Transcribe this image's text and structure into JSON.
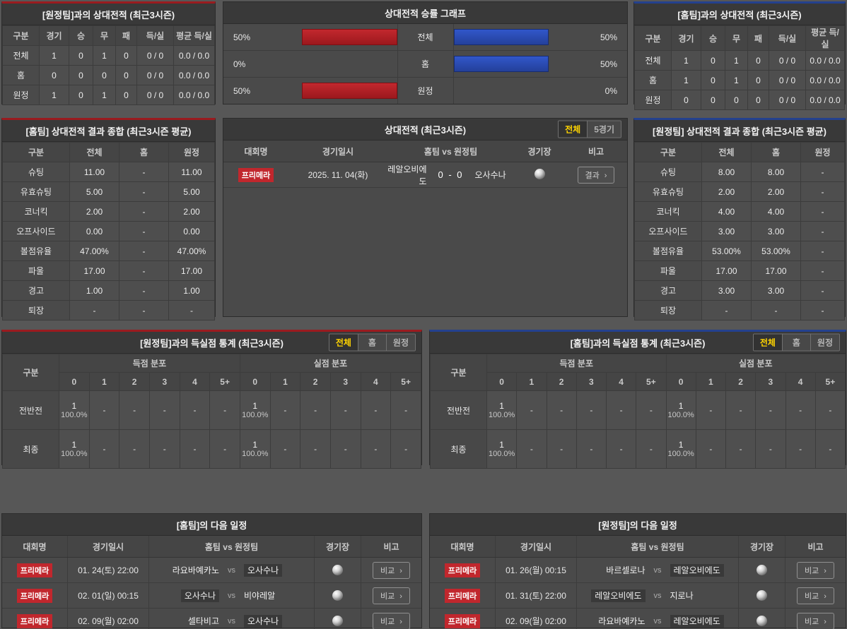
{
  "colors": {
    "accent_red": "#9a1b1f",
    "accent_blue": "#24418e",
    "badge_red": "#c1272d",
    "bar_red": "#b52327",
    "bar_blue": "#2f54c4",
    "tab_selected_text": "#ffd400"
  },
  "panels": {
    "h2h_vs_away": {
      "title": "[원정팀]과의 상대전적 (최근3시즌)",
      "columns": [
        "구분",
        "경기",
        "승",
        "무",
        "패",
        "득/실",
        "평균 득/실"
      ],
      "rows": [
        [
          "전체",
          "1",
          "0",
          "1",
          "0",
          "0 / 0",
          "0.0 / 0.0"
        ],
        [
          "홈",
          "0",
          "0",
          "0",
          "0",
          "0 / 0",
          "0.0 / 0.0"
        ],
        [
          "원정",
          "1",
          "0",
          "1",
          "0",
          "0 / 0",
          "0.0 / 0.0"
        ]
      ]
    },
    "winrate_graph": {
      "title": "상대전적 승률 그래프",
      "rows": [
        {
          "label": "전체",
          "left_pct": "50%",
          "left_value": 50,
          "right_pct": "50%",
          "right_value": 50
        },
        {
          "label": "홈",
          "left_pct": "0%",
          "left_value": 0,
          "right_pct": "50%",
          "right_value": 50
        },
        {
          "label": "원정",
          "left_pct": "50%",
          "left_value": 50,
          "right_pct": "0%",
          "right_value": 0
        }
      ]
    },
    "h2h_vs_home": {
      "title": "[홈팀]과의 상대전적 (최근3시즌)",
      "columns": [
        "구분",
        "경기",
        "승",
        "무",
        "패",
        "득/실",
        "평균 득/실"
      ],
      "rows": [
        [
          "전체",
          "1",
          "0",
          "1",
          "0",
          "0 / 0",
          "0.0 / 0.0"
        ],
        [
          "홈",
          "1",
          "0",
          "1",
          "0",
          "0 / 0",
          "0.0 / 0.0"
        ],
        [
          "원정",
          "0",
          "0",
          "0",
          "0",
          "0 / 0",
          "0.0 / 0.0"
        ]
      ]
    },
    "home_summary": {
      "title": "[홈팀] 상대전적 결과 종합 (최근3시즌 평균)",
      "columns": [
        "구분",
        "전체",
        "홈",
        "원정"
      ],
      "rows": [
        [
          "슈팅",
          "11.00",
          "-",
          "11.00"
        ],
        [
          "유효슈팅",
          "5.00",
          "-",
          "5.00"
        ],
        [
          "코너킥",
          "2.00",
          "-",
          "2.00"
        ],
        [
          "오프사이드",
          "0.00",
          "-",
          "0.00"
        ],
        [
          "볼점유율",
          "47.00%",
          "-",
          "47.00%"
        ],
        [
          "파울",
          "17.00",
          "-",
          "17.00"
        ],
        [
          "경고",
          "1.00",
          "-",
          "1.00"
        ],
        [
          "퇴장",
          "-",
          "-",
          "-"
        ]
      ]
    },
    "h2h_matches": {
      "title": "상대전적 (최근3시즌)",
      "tabs": [
        {
          "name": "all",
          "label": "전체",
          "selected": true
        },
        {
          "name": "5games",
          "label": "5경기",
          "selected": false
        }
      ],
      "columns": [
        "대회명",
        "경기일시",
        "홈팀 vs 원정팀",
        "경기장",
        "비고"
      ],
      "rows": [
        {
          "league": "프리메라",
          "datetime": "2025. 11. 04(화)",
          "home": "레알오비에도",
          "score": "0 - 0",
          "away": "오사수나",
          "button": "결과"
        }
      ]
    },
    "away_summary": {
      "title": "[원정팀] 상대전적 결과 종합 (최근3시즌 평균)",
      "columns": [
        "구분",
        "전체",
        "홈",
        "원정"
      ],
      "rows": [
        [
          "슈팅",
          "8.00",
          "8.00",
          "-"
        ],
        [
          "유효슈팅",
          "2.00",
          "2.00",
          "-"
        ],
        [
          "코너킥",
          "4.00",
          "4.00",
          "-"
        ],
        [
          "오프사이드",
          "3.00",
          "3.00",
          "-"
        ],
        [
          "볼점유율",
          "53.00%",
          "53.00%",
          "-"
        ],
        [
          "파울",
          "17.00",
          "17.00",
          "-"
        ],
        [
          "경고",
          "3.00",
          "3.00",
          "-"
        ],
        [
          "퇴장",
          "-",
          "-",
          "-"
        ]
      ]
    },
    "goals_vs_away": {
      "title": "[원정팀]과의 득실점 통계 (최근3시즌)",
      "tabs": [
        {
          "name": "all",
          "label": "전체",
          "selected": true
        },
        {
          "name": "home",
          "label": "홈",
          "selected": false
        },
        {
          "name": "away",
          "label": "원정",
          "selected": false
        }
      ],
      "corner_label": "구분",
      "group_headers": [
        "득점 분포",
        "실점 분포"
      ],
      "score_columns": [
        "0",
        "1",
        "2",
        "3",
        "4",
        "5+"
      ],
      "rows": [
        {
          "label": "전반전",
          "scored": [
            {
              "count": "1",
              "pct": "100.0%"
            },
            null,
            null,
            null,
            null,
            null
          ],
          "conceded": [
            {
              "count": "1",
              "pct": "100.0%"
            },
            null,
            null,
            null,
            null,
            null
          ]
        },
        {
          "label": "최종",
          "scored": [
            {
              "count": "1",
              "pct": "100.0%"
            },
            null,
            null,
            null,
            null,
            null
          ],
          "conceded": [
            {
              "count": "1",
              "pct": "100.0%"
            },
            null,
            null,
            null,
            null,
            null
          ]
        }
      ]
    },
    "goals_vs_home": {
      "title": "[홈팀]과의 득실점 통계 (최근3시즌)",
      "tabs": [
        {
          "name": "all",
          "label": "전체",
          "selected": true
        },
        {
          "name": "home",
          "label": "홈",
          "selected": false
        },
        {
          "name": "away",
          "label": "원정",
          "selected": false
        }
      ],
      "corner_label": "구분",
      "group_headers": [
        "득점 분포",
        "실점 분포"
      ],
      "score_columns": [
        "0",
        "1",
        "2",
        "3",
        "4",
        "5+"
      ],
      "rows": [
        {
          "label": "전반전",
          "scored": [
            {
              "count": "1",
              "pct": "100.0%"
            },
            null,
            null,
            null,
            null,
            null
          ],
          "conceded": [
            {
              "count": "1",
              "pct": "100.0%"
            },
            null,
            null,
            null,
            null,
            null
          ]
        },
        {
          "label": "최종",
          "scored": [
            {
              "count": "1",
              "pct": "100.0%"
            },
            null,
            null,
            null,
            null,
            null
          ],
          "conceded": [
            {
              "count": "1",
              "pct": "100.0%"
            },
            null,
            null,
            null,
            null,
            null
          ]
        }
      ]
    },
    "home_schedule": {
      "title": "[홈팀]의 다음 일정",
      "columns": [
        "대회명",
        "경기일시",
        "홈팀 vs 원정팀",
        "경기장",
        "비고"
      ],
      "vs_label": "vs",
      "rows": [
        {
          "league": "프리메라",
          "datetime": "01. 24(토) 22:00",
          "home": "라요바예카노",
          "away": "오사수나",
          "highlight": "away",
          "button": "비교"
        },
        {
          "league": "프리메라",
          "datetime": "02. 01(일) 00:15",
          "home": "오사수나",
          "away": "비야레알",
          "highlight": "home",
          "button": "비교"
        },
        {
          "league": "프리메라",
          "datetime": "02. 09(월) 02:00",
          "home": "셀타비고",
          "away": "오사수나",
          "highlight": "away",
          "button": "비교"
        }
      ]
    },
    "away_schedule": {
      "title": "[원정팀]의 다음 일정",
      "columns": [
        "대회명",
        "경기일시",
        "홈팀 vs 원정팀",
        "경기장",
        "비고"
      ],
      "vs_label": "vs",
      "rows": [
        {
          "league": "프리메라",
          "datetime": "01. 26(월) 00:15",
          "home": "바르셀로나",
          "away": "레알오비에도",
          "highlight": "away",
          "button": "비교"
        },
        {
          "league": "프리메라",
          "datetime": "01. 31(토) 22:00",
          "home": "레알오비에도",
          "away": "지로나",
          "highlight": "home",
          "button": "비교"
        },
        {
          "league": "프리메라",
          "datetime": "02. 09(월) 02:00",
          "home": "라요바예카노",
          "away": "레알오비에도",
          "highlight": "away",
          "button": "비교"
        }
      ]
    }
  }
}
